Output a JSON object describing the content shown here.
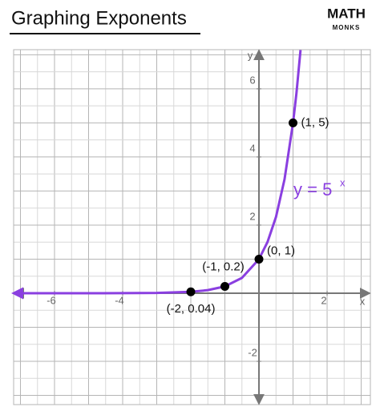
{
  "chart_data": {
    "type": "line",
    "title": "Graphing Exponents",
    "logo": {
      "top": "MATH",
      "bottom": "MONKS"
    },
    "x_label": "x",
    "y_label": "y",
    "equation": {
      "base": "y = 5",
      "exponent": "x"
    },
    "xlim": [
      -7.2,
      3.27
    ],
    "ylim": [
      -3.27,
      7.15
    ],
    "xticks": [
      -6,
      -4,
      2
    ],
    "yticks": [
      -2,
      2,
      4,
      6
    ],
    "grid": true,
    "grid_step": 0.5,
    "series": [
      {
        "color": "#8a3fe0",
        "x": [
          -7.2,
          -6,
          -5,
          -4,
          -3,
          -2,
          -1.5,
          -1,
          -0.5,
          0,
          0.25,
          0.5,
          0.75,
          1,
          1.1,
          1.22
        ],
        "values": [
          1e-05,
          6e-05,
          0.0003,
          0.0016,
          0.008,
          0.04,
          0.09,
          0.2,
          0.45,
          1,
          1.5,
          2.24,
          3.34,
          5,
          5.87,
          7.14
        ]
      }
    ],
    "points": {
      "x": [
        -2,
        -1,
        0,
        1
      ],
      "values": [
        0.04,
        0.2,
        1,
        5
      ],
      "labels": [
        "(-2, 0.04)",
        "(-1, 0.2)",
        "(0, 1)",
        "(1, 5)"
      ]
    }
  }
}
